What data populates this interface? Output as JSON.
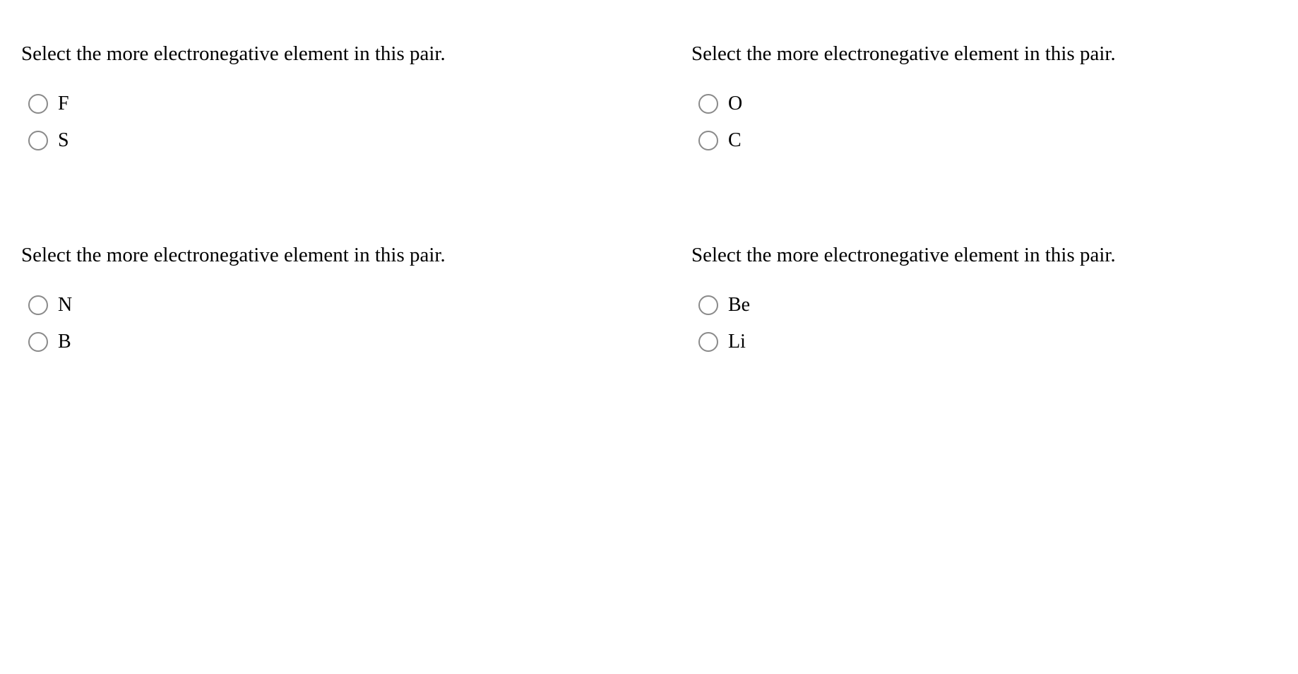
{
  "questions": [
    {
      "prompt": "Select the more electronegative element in this pair.",
      "options": [
        "F",
        "S"
      ]
    },
    {
      "prompt": "Select the more electronegative element in this pair.",
      "options": [
        "O",
        "C"
      ]
    },
    {
      "prompt": "Select the more electronegative element in this pair.",
      "options": [
        "N",
        "B"
      ]
    },
    {
      "prompt": "Select the more electronegative element in this pair.",
      "options": [
        "Be",
        "Li"
      ]
    }
  ]
}
